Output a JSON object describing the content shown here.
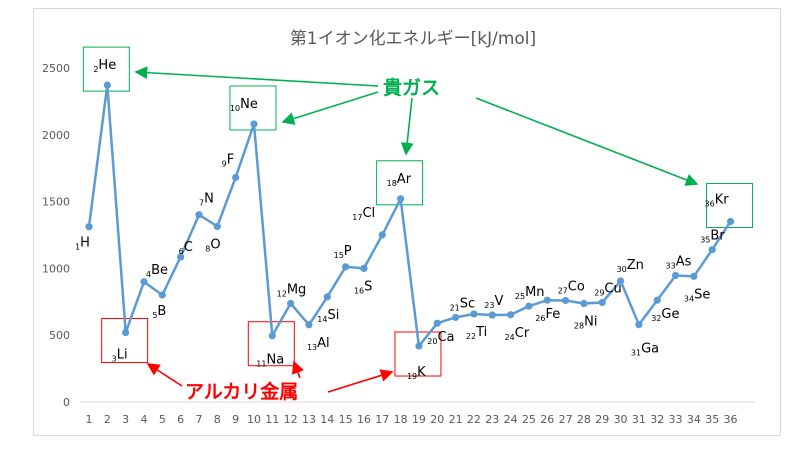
{
  "chart_data": {
    "type": "line",
    "title": "第1イオン化エネルギー[kJ/mol]",
    "xlabel": "",
    "ylabel": "",
    "x": [
      1,
      2,
      3,
      4,
      5,
      6,
      7,
      8,
      9,
      10,
      11,
      12,
      13,
      14,
      15,
      16,
      17,
      18,
      19,
      20,
      21,
      22,
      23,
      24,
      25,
      26,
      27,
      28,
      29,
      30,
      31,
      32,
      33,
      34,
      35,
      36
    ],
    "values": [
      1312,
      2372,
      520,
      900,
      801,
      1086,
      1402,
      1314,
      1681,
      2081,
      496,
      738,
      578,
      787,
      1012,
      1000,
      1251,
      1521,
      419,
      590,
      633,
      659,
      651,
      653,
      717,
      762,
      760,
      737,
      745,
      906,
      579,
      762,
      947,
      941,
      1140,
      1351
    ],
    "symbols": [
      "H",
      "He",
      "Li",
      "Be",
      "B",
      "C",
      "N",
      "O",
      "F",
      "Ne",
      "Na",
      "Mg",
      "Al",
      "Si",
      "P",
      "S",
      "Cl",
      "Ar",
      "K",
      "Ca",
      "Sc",
      "Ti",
      "V",
      "Cr",
      "Mn",
      "Fe",
      "Co",
      "Ni",
      "Cu",
      "Zn",
      "Ga",
      "Ge",
      "As",
      "Se",
      "Br",
      "Kr"
    ],
    "ylim": [
      0,
      2500
    ],
    "yticks": [
      0,
      500,
      1000,
      1500,
      2000,
      2500
    ],
    "grid": false,
    "series_color": "#5b9bd5",
    "annotations": {
      "noble_gas_label": "貴ガス",
      "noble_gas_color": "#00b050",
      "noble_gas_elements": [
        2,
        10,
        18,
        36
      ],
      "alkali_label": "アルカリ金属",
      "alkali_color": "#ff0000",
      "alkali_elements": [
        3,
        11,
        19
      ]
    }
  }
}
